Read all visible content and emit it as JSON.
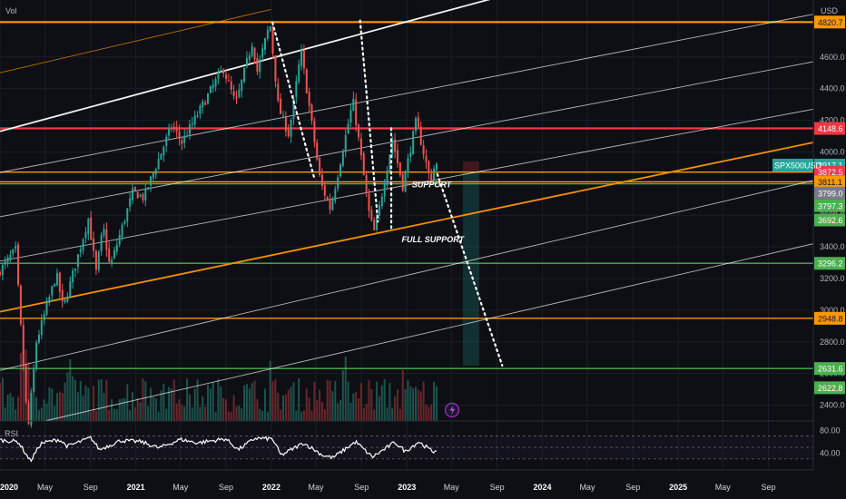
{
  "chart_data": {
    "type": "candlestick",
    "symbol": "SPX500USD",
    "pane_labels": {
      "volume": "Vol",
      "currency": "USD",
      "rsi": "RSI"
    },
    "y_price_range": [
      2300,
      4960
    ],
    "y_ticks": [
      "4600.0",
      "4400.0",
      "4200.0",
      "4000.0",
      "3800.0",
      "3600.0",
      "3400.0",
      "3200.0",
      "3000.0",
      "2800.0",
      "2600.0",
      "2400.0"
    ],
    "y_tick_values": [
      4600,
      4400,
      4200,
      4000,
      3800,
      3600,
      3400,
      3200,
      3000,
      2800,
      2600,
      2400
    ],
    "x_range": [
      "2020-01-01",
      "2025-12-31"
    ],
    "x_ticks": [
      {
        "label": "2020",
        "date": "2020-01-01",
        "year": true
      },
      {
        "label": "May",
        "date": "2020-05-01"
      },
      {
        "label": "Sep",
        "date": "2020-09-01"
      },
      {
        "label": "2021",
        "date": "2021-01-01",
        "year": true
      },
      {
        "label": "May",
        "date": "2021-05-01"
      },
      {
        "label": "Sep",
        "date": "2021-09-01"
      },
      {
        "label": "2022",
        "date": "2022-01-01",
        "year": true
      },
      {
        "label": "May",
        "date": "2022-05-01"
      },
      {
        "label": "Sep",
        "date": "2022-09-01"
      },
      {
        "label": "2023",
        "date": "2023-01-01",
        "year": true
      },
      {
        "label": "May",
        "date": "2023-05-01"
      },
      {
        "label": "Sep",
        "date": "2023-09-01"
      },
      {
        "label": "2024",
        "date": "2024-01-01",
        "year": true
      },
      {
        "label": "May",
        "date": "2024-05-01"
      },
      {
        "label": "Sep",
        "date": "2024-09-01"
      },
      {
        "label": "2025",
        "date": "2025-01-01",
        "year": true
      },
      {
        "label": "May",
        "date": "2025-05-01"
      },
      {
        "label": "Sep",
        "date": "2025-09-01"
      }
    ],
    "price_path": [
      [
        "2020-01-01",
        3230
      ],
      [
        "2020-02-19",
        3380
      ],
      [
        "2020-03-23",
        2230
      ],
      [
        "2020-04-15",
        2800
      ],
      [
        "2020-06-08",
        3230
      ],
      [
        "2020-06-26",
        3010
      ],
      [
        "2020-09-02",
        3580
      ],
      [
        "2020-09-23",
        3240
      ],
      [
        "2020-10-12",
        3530
      ],
      [
        "2020-10-30",
        3270
      ],
      [
        "2020-12-31",
        3750
      ],
      [
        "2021-01-29",
        3710
      ],
      [
        "2021-04-15",
        4170
      ],
      [
        "2021-05-12",
        4060
      ],
      [
        "2021-08-31",
        4530
      ],
      [
        "2021-10-04",
        4300
      ],
      [
        "2021-11-18",
        4700
      ],
      [
        "2021-12-01",
        4510
      ],
      [
        "2022-01-04",
        4818
      ],
      [
        "2022-01-27",
        4280
      ],
      [
        "2022-02-24",
        4110
      ],
      [
        "2022-03-29",
        4637
      ],
      [
        "2022-05-20",
        3810
      ],
      [
        "2022-06-16",
        3640
      ],
      [
        "2022-08-16",
        4325
      ],
      [
        "2022-09-30",
        3585
      ],
      [
        "2022-10-13",
        3490
      ],
      [
        "2022-11-30",
        4080
      ],
      [
        "2022-12-28",
        3785
      ],
      [
        "2023-02-02",
        4195
      ],
      [
        "2023-03-13",
        3810
      ],
      [
        "2023-03-24",
        3917
      ]
    ],
    "levels": [
      {
        "price": 4820.7,
        "label": "4820.7",
        "color": "#ff9800"
      },
      {
        "price": 4148.6,
        "label": "4148.6",
        "color": "#f23645"
      },
      {
        "price": 3872.5,
        "label": "3872.5",
        "color": "#ff9800"
      },
      {
        "price": 3811.1,
        "label": "3811.1",
        "color": "#ff9800"
      },
      {
        "price": 3799.0,
        "label": "3799.0",
        "color": "#4caf50"
      },
      {
        "price": 3296.2,
        "label": "3296.2",
        "color": "#4caf50"
      },
      {
        "price": 2948.8,
        "label": "2948.8",
        "color": "#ff9800"
      },
      {
        "price": 2631.6,
        "label": "2631.6",
        "color": "#4caf50"
      }
    ],
    "price_tags": [
      {
        "label": "4820.7",
        "price": 4820.7,
        "bg": "#ff9800",
        "fg": "#131722"
      },
      {
        "label": "4148.6",
        "price": 4148.6,
        "bg": "#f23645",
        "fg": "#ffffff"
      },
      {
        "label": "3917.1",
        "price": 3917.1,
        "bg": "#26a69a",
        "fg": "#ffffff"
      },
      {
        "label": "3872.5",
        "price": 3872.5,
        "bg": "#f23645",
        "fg": "#ffffff"
      },
      {
        "label": "3811.1",
        "price": 3811.1,
        "bg": "#ff9800",
        "fg": "#131722"
      },
      {
        "label": "3799.0",
        "price": 3740,
        "bg": "#787b86",
        "fg": "#ffffff"
      },
      {
        "label": "3797.3",
        "price": 3660,
        "bg": "#4caf50",
        "fg": "#ffffff"
      },
      {
        "label": "3692.6",
        "price": 3570,
        "bg": "#4caf50",
        "fg": "#ffffff"
      },
      {
        "label": "3296.2",
        "price": 3296.2,
        "bg": "#4caf50",
        "fg": "#ffffff"
      },
      {
        "label": "2948.8",
        "price": 2948.8,
        "bg": "#ff9800",
        "fg": "#131722"
      },
      {
        "label": "2631.6",
        "price": 2631.6,
        "bg": "#4caf50",
        "fg": "#ffffff"
      },
      {
        "label": "2622.8",
        "price": 2510,
        "bg": "#4caf50",
        "fg": "#ffffff"
      }
    ],
    "symbol_tag": {
      "label": "SPX500USD",
      "price": 3917.1,
      "bg": "#26a69a",
      "fg": "#ffffff"
    },
    "channel_lines": [
      {
        "p1": [
          "2020-01-01",
          4500
        ],
        "p2": [
          "2021-12-31",
          4900
        ],
        "color": "#ff9800"
      },
      {
        "p1": [
          "2020-01-01",
          4130
        ],
        "p2": [
          "2024-02-27",
          5090
        ],
        "color": "#ffffff",
        "weight": "bold"
      },
      {
        "p1": [
          "2020-01-01",
          3870
        ],
        "p2": [
          "2025-12-31",
          4870
        ],
        "color": "#ffffff"
      },
      {
        "p1": [
          "2020-01-01",
          3590
        ],
        "p2": [
          "2025-12-31",
          4570
        ],
        "color": "#ffffff"
      },
      {
        "p1": [
          "2020-01-01",
          3310
        ],
        "p2": [
          "2025-12-31",
          4270
        ],
        "color": "#ffffff"
      },
      {
        "p1": [
          "2020-01-01",
          2990
        ],
        "p2": [
          "2025-12-31",
          4060
        ],
        "color": "#ff9800",
        "weight": "bold"
      },
      {
        "p1": [
          "2020-01-01",
          2620
        ],
        "p2": [
          "2025-12-31",
          3820
        ],
        "color": "#ffffff"
      },
      {
        "p1": [
          "2020-05-01",
          2300
        ],
        "p2": [
          "2025-12-31",
          3420
        ],
        "color": "#ffffff"
      }
    ],
    "dotted_paths": [
      [
        [
          "2022-01-04",
          4818
        ],
        [
          "2022-04-26",
          3840
        ]
      ],
      [
        [
          "2022-08-28",
          4830
        ],
        [
          "2022-10-15",
          3560
        ]
      ],
      [
        [
          "2022-11-20",
          4150
        ],
        [
          "2022-11-20",
          3500
        ]
      ],
      [
        [
          "2023-03-24",
          3860
        ],
        [
          "2023-09-15",
          2650
        ]
      ]
    ],
    "annotations": [
      {
        "text": "SUPPORT",
        "date": "2023-01-15",
        "price": 3775
      },
      {
        "text": "FULL SUPPORT",
        "date": "2022-12-18",
        "price": 3430
      }
    ],
    "forecast_boxes": [
      {
        "from": "2023-06-01",
        "to": "2023-07-15",
        "top": 3940,
        "bottom": 3872.5,
        "color": "#f23645"
      },
      {
        "from": "2023-06-01",
        "to": "2023-07-15",
        "top": 3872.5,
        "bottom": 2650,
        "color": "#26a69a"
      }
    ],
    "rsi": {
      "label": "RSI",
      "y_ticks": [
        "80.00",
        "40.00"
      ],
      "y_tick_values": [
        80,
        40
      ],
      "range": [
        20,
        90
      ],
      "bands": [
        70,
        50,
        30
      ],
      "path": [
        [
          "2020-01-01",
          63
        ],
        [
          "2020-02-19",
          60
        ],
        [
          "2020-03-23",
          26
        ],
        [
          "2020-04-20",
          57
        ],
        [
          "2020-06-08",
          64
        ],
        [
          "2020-07-01",
          52
        ],
        [
          "2020-09-02",
          67
        ],
        [
          "2020-09-25",
          46
        ],
        [
          "2020-11-20",
          62
        ],
        [
          "2021-01-15",
          60
        ],
        [
          "2021-03-04",
          49
        ],
        [
          "2021-05-01",
          64
        ],
        [
          "2021-06-15",
          58
        ],
        [
          "2021-08-31",
          65
        ],
        [
          "2021-10-04",
          46
        ],
        [
          "2021-11-18",
          66
        ],
        [
          "2022-01-04",
          65
        ],
        [
          "2022-01-27",
          36
        ],
        [
          "2022-03-29",
          58
        ],
        [
          "2022-05-20",
          36
        ],
        [
          "2022-06-16",
          32
        ],
        [
          "2022-08-16",
          60
        ],
        [
          "2022-09-30",
          33
        ],
        [
          "2022-11-30",
          59
        ],
        [
          "2022-12-28",
          43
        ],
        [
          "2023-02-02",
          60
        ],
        [
          "2023-03-13",
          42
        ],
        [
          "2023-03-24",
          48
        ]
      ]
    }
  }
}
